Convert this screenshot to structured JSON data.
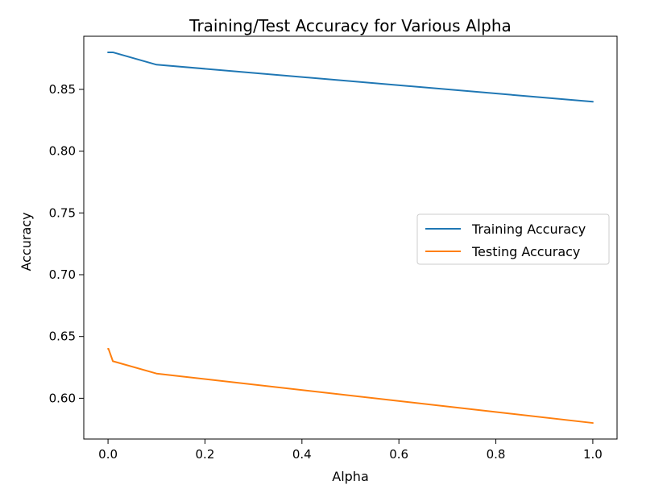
{
  "chart_data": {
    "type": "line",
    "title": "Training/Test Accuracy for Various Alpha",
    "xlabel": "Alpha",
    "ylabel": "Accuracy",
    "xlim": [
      -0.05,
      1.05
    ],
    "ylim": [
      0.567,
      0.893
    ],
    "xticks": [
      0.0,
      0.2,
      0.4,
      0.6,
      0.8,
      1.0
    ],
    "xtick_labels": [
      "0.0",
      "0.2",
      "0.4",
      "0.6",
      "0.8",
      "1.0"
    ],
    "yticks": [
      0.6,
      0.65,
      0.7,
      0.75,
      0.8,
      0.85
    ],
    "ytick_labels": [
      "0.60",
      "0.65",
      "0.70",
      "0.75",
      "0.80",
      "0.85"
    ],
    "grid": false,
    "legend_position": "center-right",
    "x": [
      0.0,
      0.001,
      0.01,
      0.1,
      1.0
    ],
    "series": [
      {
        "name": "Training Accuracy",
        "color": "#1f77b4",
        "values": [
          0.88,
          0.88,
          0.88,
          0.87,
          0.84
        ]
      },
      {
        "name": "Testing Accuracy",
        "color": "#ff7f0e",
        "values": [
          0.64,
          0.64,
          0.63,
          0.62,
          0.58
        ]
      }
    ]
  }
}
